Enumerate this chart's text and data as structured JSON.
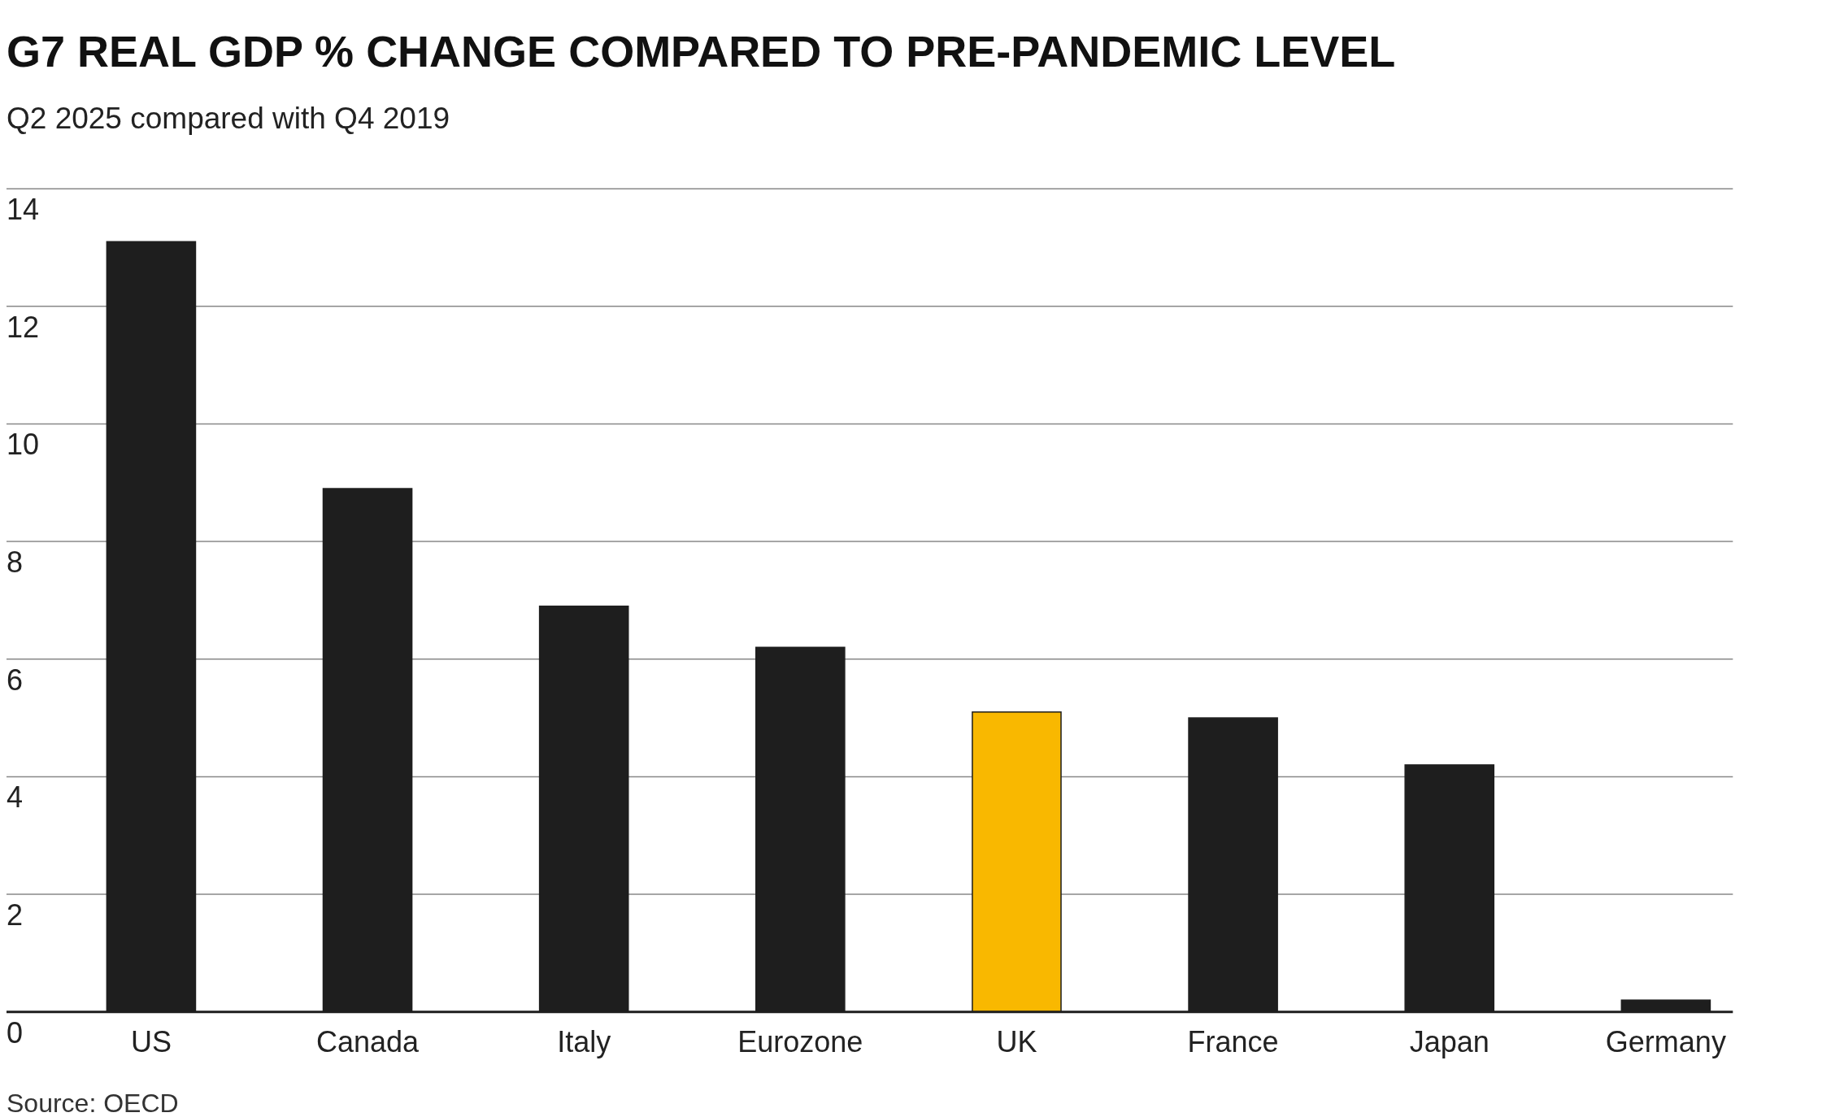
{
  "chart_data": {
    "type": "bar",
    "title": "G7 REAL GDP % CHANGE COMPARED TO PRE-PANDEMIC LEVEL",
    "subtitle": "Q2 2025 compared with Q4 2019",
    "categories": [
      "US",
      "Canada",
      "Italy",
      "Eurozone",
      "UK",
      "France",
      "Japan",
      "Germany"
    ],
    "values": [
      13.1,
      8.9,
      6.9,
      6.2,
      5.1,
      5.0,
      4.2,
      0.2
    ],
    "colors": [
      "#1e1e1e",
      "#1e1e1e",
      "#1e1e1e",
      "#1e1e1e",
      "#f9b800",
      "#1e1e1e",
      "#1e1e1e",
      "#1e1e1e"
    ],
    "ylim": [
      0,
      14
    ],
    "yticks": [
      0,
      2,
      4,
      6,
      8,
      10,
      12,
      14
    ],
    "grid": "y",
    "annotations": [
      "Source: OECD"
    ]
  }
}
